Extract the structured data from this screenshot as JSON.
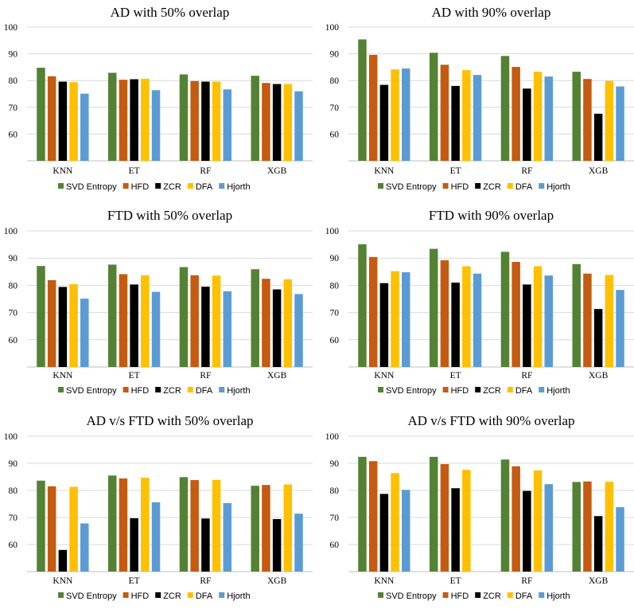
{
  "colors": {
    "SVD Entropy": "#548235",
    "HFD": "#c55a11",
    "ZCR": "#000000",
    "DFA": "#ffc000",
    "Hjorth": "#5b9bd5"
  },
  "chart_data": [
    {
      "type": "bar",
      "title": "AD with 50% overlap",
      "categories": [
        "KNN",
        "ET",
        "RF",
        "XGB"
      ],
      "ylim": [
        50,
        100
      ],
      "yticks": [
        60,
        70,
        80,
        90,
        100
      ],
      "legend": "bottom",
      "series": [
        {
          "name": "SVD Entropy",
          "values": [
            84.8,
            82.9,
            82.3,
            81.8
          ]
        },
        {
          "name": "HFD",
          "values": [
            81.6,
            80.3,
            79.8,
            79.1
          ]
        },
        {
          "name": "ZCR",
          "values": [
            79.6,
            80.5,
            79.6,
            78.7
          ]
        },
        {
          "name": "DFA",
          "values": [
            79.4,
            80.7,
            79.6,
            78.7
          ]
        },
        {
          "name": "Hjorth",
          "values": [
            75.1,
            76.4,
            76.7,
            76.0
          ]
        }
      ]
    },
    {
      "type": "bar",
      "title": "AD with 90% overlap",
      "categories": [
        "KNN",
        "ET",
        "RF",
        "XGB"
      ],
      "ylim": [
        50,
        100
      ],
      "yticks": [
        60,
        70,
        80,
        90,
        100
      ],
      "legend": "bottom",
      "series": [
        {
          "name": "SVD Entropy",
          "values": [
            95.4,
            90.4,
            89.2,
            83.3
          ]
        },
        {
          "name": "HFD",
          "values": [
            89.6,
            85.9,
            85.1,
            80.6
          ]
        },
        {
          "name": "ZCR",
          "values": [
            78.4,
            78.0,
            77.0,
            67.6
          ]
        },
        {
          "name": "DFA",
          "values": [
            84.2,
            83.9,
            83.3,
            79.9
          ]
        },
        {
          "name": "Hjorth",
          "values": [
            84.5,
            82.1,
            81.5,
            77.8
          ]
        }
      ]
    },
    {
      "type": "bar",
      "title": "FTD with 50% overlap",
      "categories": [
        "KNN",
        "ET",
        "RF",
        "XGB"
      ],
      "ylim": [
        50,
        100
      ],
      "yticks": [
        60,
        70,
        80,
        90,
        100
      ],
      "legend": "bottom",
      "series": [
        {
          "name": "SVD Entropy",
          "values": [
            87.1,
            87.6,
            86.7,
            85.9
          ]
        },
        {
          "name": "HFD",
          "values": [
            81.9,
            84.1,
            83.7,
            82.4
          ]
        },
        {
          "name": "ZCR",
          "values": [
            79.4,
            80.3,
            79.5,
            78.5
          ]
        },
        {
          "name": "DFA",
          "values": [
            80.4,
            83.7,
            83.6,
            82.2
          ]
        },
        {
          "name": "Hjorth",
          "values": [
            75.1,
            77.6,
            77.8,
            76.8
          ]
        }
      ]
    },
    {
      "type": "bar",
      "title": "FTD with 90% overlap",
      "categories": [
        "KNN",
        "ET",
        "RF",
        "XGB"
      ],
      "ylim": [
        50,
        100
      ],
      "yticks": [
        60,
        70,
        80,
        90,
        100
      ],
      "legend": "bottom",
      "series": [
        {
          "name": "SVD Entropy",
          "values": [
            95.1,
            93.4,
            92.3,
            87.8
          ]
        },
        {
          "name": "HFD",
          "values": [
            90.4,
            89.2,
            88.6,
            84.3
          ]
        },
        {
          "name": "ZCR",
          "values": [
            80.8,
            81.0,
            80.3,
            71.3
          ]
        },
        {
          "name": "DFA",
          "values": [
            85.2,
            87.0,
            87.0,
            83.8
          ]
        },
        {
          "name": "Hjorth",
          "values": [
            84.8,
            84.3,
            83.6,
            78.3
          ]
        }
      ]
    },
    {
      "type": "bar",
      "title": "AD v/s FTD with 50% overlap",
      "categories": [
        "KNN",
        "ET",
        "RF",
        "XGB"
      ],
      "ylim": [
        50,
        100
      ],
      "yticks": [
        60,
        70,
        80,
        90,
        100
      ],
      "legend": "bottom",
      "series": [
        {
          "name": "SVD Entropy",
          "values": [
            83.6,
            85.5,
            84.9,
            81.7
          ]
        },
        {
          "name": "HFD",
          "values": [
            81.5,
            84.4,
            83.8,
            82.0
          ]
        },
        {
          "name": "ZCR",
          "values": [
            58.0,
            69.7,
            69.6,
            69.4
          ]
        },
        {
          "name": "DFA",
          "values": [
            81.3,
            84.7,
            83.9,
            82.2
          ]
        },
        {
          "name": "Hjorth",
          "values": [
            67.8,
            75.6,
            75.3,
            71.4
          ]
        }
      ]
    },
    {
      "type": "bar",
      "title": "AD v/s FTD with 90% overlap",
      "categories": [
        "KNN",
        "ET",
        "RF",
        "XGB"
      ],
      "ylim": [
        50,
        100
      ],
      "yticks": [
        60,
        70,
        80,
        90,
        100
      ],
      "legend": "bottom",
      "series": [
        {
          "name": "SVD Entropy",
          "values": [
            92.4,
            92.4,
            91.4,
            83.1
          ]
        },
        {
          "name": "HFD",
          "values": [
            90.8,
            89.7,
            88.9,
            83.3
          ]
        },
        {
          "name": "ZCR",
          "values": [
            78.7,
            80.8,
            79.8,
            70.5
          ]
        },
        {
          "name": "DFA",
          "values": [
            86.4,
            87.6,
            87.4,
            83.2
          ]
        },
        {
          "name": "Hjorth",
          "values": [
            80.2,
            null,
            82.3,
            73.8
          ]
        }
      ]
    }
  ]
}
